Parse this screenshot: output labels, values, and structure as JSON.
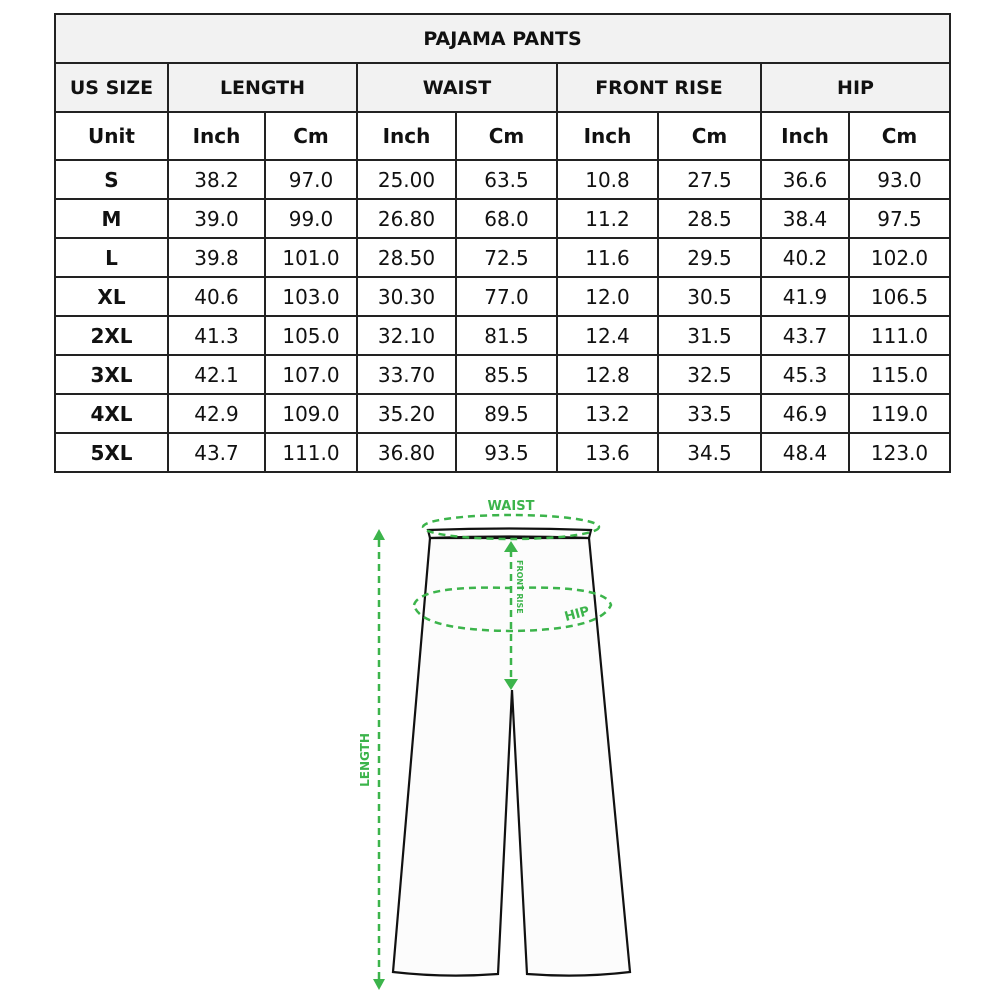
{
  "title": "PAJAMA PANTS",
  "headers": [
    "US SIZE",
    "LENGTH",
    "WAIST",
    "FRONT RISE",
    "HIP"
  ],
  "units": [
    "Unit",
    "Inch",
    "Cm",
    "Inch",
    "Cm",
    "Inch",
    "Cm",
    "Inch",
    "Cm"
  ],
  "rows": [
    [
      "S",
      "38.2",
      "97.0",
      "25.00",
      "63.5",
      "10.8",
      "27.5",
      "36.6",
      "93.0"
    ],
    [
      "M",
      "39.0",
      "99.0",
      "26.80",
      "68.0",
      "11.2",
      "28.5",
      "38.4",
      "97.5"
    ],
    [
      "L",
      "39.8",
      "101.0",
      "28.50",
      "72.5",
      "11.6",
      "29.5",
      "40.2",
      "102.0"
    ],
    [
      "XL",
      "40.6",
      "103.0",
      "30.30",
      "77.0",
      "12.0",
      "30.5",
      "41.9",
      "106.5"
    ],
    [
      "2XL",
      "41.3",
      "105.0",
      "32.10",
      "81.5",
      "12.4",
      "31.5",
      "43.7",
      "111.0"
    ],
    [
      "3XL",
      "42.1",
      "107.0",
      "33.70",
      "85.5",
      "12.8",
      "32.5",
      "45.3",
      "115.0"
    ],
    [
      "4XL",
      "42.9",
      "109.0",
      "35.20",
      "89.5",
      "13.2",
      "33.5",
      "46.9",
      "119.0"
    ],
    [
      "5XL",
      "43.7",
      "111.0",
      "36.80",
      "93.5",
      "13.6",
      "34.5",
      "48.4",
      "123.0"
    ]
  ],
  "diagram": {
    "waist": "WAIST",
    "front_rise": "FRONT RISE",
    "hip": "HIP",
    "length": "LENGTH",
    "accent": "#3cb44b"
  }
}
